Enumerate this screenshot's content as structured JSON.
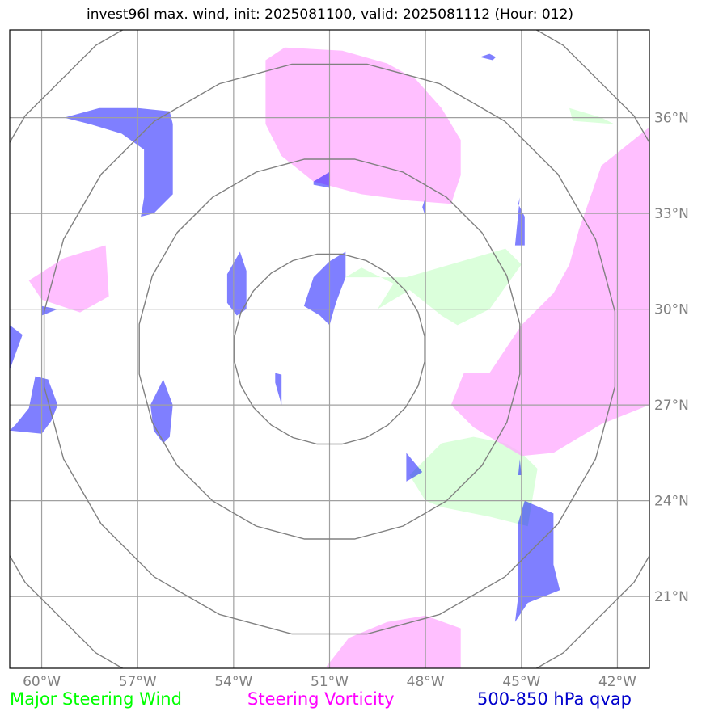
{
  "title": "invest96l max. wind, init: 2025081100, valid: 2025081112 (Hour: 012)",
  "legend": [
    {
      "label": "Major Steering Wind",
      "color": "#00ff00"
    },
    {
      "label": "Steering Vorticity",
      "color": "#ff00ff"
    },
    {
      "label": "500-850 hPa qvap",
      "color": "#0000cc"
    }
  ],
  "map": {
    "lon_range": [
      -61,
      -41
    ],
    "lat_range": [
      18.75,
      38.75
    ],
    "lon_ticks": [
      {
        "value": -60,
        "label": "60°W"
      },
      {
        "value": -57,
        "label": "57°W"
      },
      {
        "value": -54,
        "label": "54°W"
      },
      {
        "value": -51,
        "label": "51°W"
      },
      {
        "value": -48,
        "label": "48°W"
      },
      {
        "value": -45,
        "label": "45°W"
      },
      {
        "value": -42,
        "label": "42°W"
      }
    ],
    "lat_ticks": [
      {
        "value": 36,
        "label": "36°N"
      },
      {
        "value": 33,
        "label": "33°N"
      },
      {
        "value": 30,
        "label": "30°N"
      },
      {
        "value": 27,
        "label": "27°N"
      },
      {
        "value": 24,
        "label": "24°N"
      },
      {
        "value": 21,
        "label": "21°N"
      }
    ],
    "center": {
      "lon": -51,
      "lat": 28.75
    },
    "range_rings_deg": [
      3,
      6,
      9,
      12
    ],
    "colors": {
      "wind": "#ccffcc",
      "vorticity": "#ffaaff",
      "qvap": "#0000ff",
      "grid": "#a0a0a0",
      "rings": "#808080"
    },
    "wind_areas": [
      [
        [
          -50.5,
          31.0
        ],
        [
          -48.6,
          31.0
        ],
        [
          -45.5,
          31.9
        ],
        [
          -45.0,
          31.4
        ],
        [
          -46.0,
          30.0
        ],
        [
          -47.0,
          29.5
        ],
        [
          -47.5,
          29.8
        ],
        [
          -48.5,
          30.6
        ],
        [
          -49.5,
          30.0
        ],
        [
          -49.0,
          30.8
        ],
        [
          -50.0,
          31.3
        ]
      ],
      [
        [
          -48.5,
          24.8
        ],
        [
          -47.5,
          25.8
        ],
        [
          -46.5,
          26.0
        ],
        [
          -45.5,
          25.8
        ],
        [
          -45.0,
          25.5
        ],
        [
          -44.5,
          25.0
        ],
        [
          -44.8,
          23.2
        ],
        [
          -46.0,
          23.5
        ],
        [
          -47.5,
          23.8
        ],
        [
          -48.0,
          24.0
        ]
      ],
      [
        [
          -43.5,
          36.3
        ],
        [
          -42.5,
          36.0
        ],
        [
          -42.1,
          35.8
        ],
        [
          -43.4,
          35.9
        ]
      ]
    ],
    "vorticity_areas": [
      [
        [
          -53.0,
          37.8
        ],
        [
          -52.4,
          38.2
        ],
        [
          -50.6,
          38.1
        ],
        [
          -49.2,
          37.7
        ],
        [
          -48.3,
          37.2
        ],
        [
          -47.5,
          36.3
        ],
        [
          -46.9,
          35.3
        ],
        [
          -46.9,
          34.2
        ],
        [
          -47.2,
          33.3
        ],
        [
          -48.5,
          33.4
        ],
        [
          -50.0,
          33.6
        ],
        [
          -51.5,
          34.0
        ],
        [
          -52.5,
          34.8
        ],
        [
          -53.0,
          35.8
        ]
      ],
      [
        [
          -60.4,
          30.9
        ],
        [
          -59.3,
          31.6
        ],
        [
          -58.0,
          32.0
        ],
        [
          -57.9,
          30.4
        ],
        [
          -58.8,
          29.9
        ],
        [
          -60.0,
          30.3
        ]
      ],
      [
        [
          -46.0,
          28.0
        ],
        [
          -45.0,
          29.5
        ],
        [
          -44.0,
          30.5
        ],
        [
          -43.5,
          31.4
        ],
        [
          -43.2,
          32.5
        ],
        [
          -42.5,
          34.5
        ],
        [
          -41.0,
          35.7
        ],
        [
          -41.0,
          27.0
        ],
        [
          -42.5,
          26.4
        ],
        [
          -44.0,
          25.5
        ],
        [
          -45.0,
          25.4
        ],
        [
          -46.5,
          26.3
        ],
        [
          -47.2,
          27.0
        ],
        [
          -46.8,
          28.0
        ]
      ],
      [
        [
          -51.1,
          18.8
        ],
        [
          -50.4,
          19.7
        ],
        [
          -49.2,
          20.2
        ],
        [
          -48.0,
          20.4
        ],
        [
          -46.9,
          20.0
        ],
        [
          -46.9,
          18.75
        ],
        [
          -51.0,
          18.75
        ]
      ]
    ],
    "qvap_areas": [
      [
        [
          -59.3,
          36.0
        ],
        [
          -58.2,
          36.3
        ],
        [
          -57.0,
          36.3
        ],
        [
          -56.0,
          36.2
        ],
        [
          -55.9,
          35.8
        ],
        [
          -55.9,
          33.6
        ],
        [
          -56.5,
          33.0
        ],
        [
          -56.9,
          32.9
        ],
        [
          -56.8,
          33.5
        ],
        [
          -56.8,
          35.0
        ],
        [
          -57.5,
          35.5
        ],
        [
          -58.5,
          35.8
        ]
      ],
      [
        [
          -51.0,
          31.5
        ],
        [
          -51.5,
          31.0
        ],
        [
          -51.8,
          30.1
        ],
        [
          -51.3,
          29.8
        ],
        [
          -51.0,
          29.5
        ],
        [
          -50.8,
          30.2
        ],
        [
          -50.5,
          31.0
        ],
        [
          -50.5,
          31.8
        ]
      ],
      [
        [
          -53.8,
          31.8
        ],
        [
          -53.6,
          31.2
        ],
        [
          -53.6,
          30.0
        ],
        [
          -53.9,
          29.8
        ],
        [
          -54.2,
          30.2
        ],
        [
          -54.2,
          31.1
        ]
      ],
      [
        [
          -56.2,
          27.8
        ],
        [
          -55.9,
          27.0
        ],
        [
          -56.0,
          26.0
        ],
        [
          -56.2,
          25.8
        ],
        [
          -56.5,
          26.2
        ],
        [
          -56.6,
          27.0
        ]
      ],
      [
        [
          -60.2,
          27.9
        ],
        [
          -59.8,
          27.8
        ],
        [
          -59.5,
          27.0
        ],
        [
          -59.7,
          26.5
        ],
        [
          -60.0,
          26.1
        ],
        [
          -61.0,
          26.2
        ],
        [
          -60.8,
          26.4
        ],
        [
          -60.4,
          26.9
        ]
      ],
      [
        [
          -61.0,
          29.5
        ],
        [
          -60.6,
          29.2
        ],
        [
          -61.0,
          28.1
        ]
      ],
      [
        [
          -44.9,
          24.0
        ],
        [
          -44.0,
          23.6
        ],
        [
          -44.0,
          22.0
        ],
        [
          -43.8,
          21.2
        ],
        [
          -44.8,
          20.8
        ],
        [
          -45.2,
          20.2
        ],
        [
          -45.1,
          21.0
        ],
        [
          -45.1,
          23.3
        ]
      ],
      [
        [
          -45.1,
          33.3
        ],
        [
          -44.9,
          32.9
        ],
        [
          -44.9,
          32.0
        ],
        [
          -45.2,
          32.0
        ],
        [
          -45.1,
          33.0
        ],
        [
          -45.05,
          33.5
        ]
      ],
      [
        [
          -48.6,
          25.5
        ],
        [
          -48.1,
          24.9
        ],
        [
          -48.6,
          24.6
        ]
      ],
      [
        [
          -46.3,
          37.9
        ],
        [
          -45.9,
          37.8
        ],
        [
          -45.8,
          37.9
        ],
        [
          -46.0,
          38.0
        ]
      ],
      [
        [
          -52.7,
          28.0
        ],
        [
          -52.5,
          27.95
        ],
        [
          -52.5,
          27.0
        ],
        [
          -52.7,
          27.7
        ]
      ],
      [
        [
          -51.5,
          34.0
        ],
        [
          -51.0,
          34.3
        ],
        [
          -51.0,
          33.8
        ],
        [
          -51.5,
          33.9
        ]
      ],
      [
        [
          -60.0,
          30.1
        ],
        [
          -59.5,
          30.0
        ],
        [
          -60.0,
          29.8
        ]
      ],
      [
        [
          -48.1,
          33.2
        ],
        [
          -48.0,
          33.5
        ],
        [
          -48.0,
          32.9
        ]
      ],
      [
        [
          -45.1,
          24.8
        ],
        [
          -45.05,
          25.3
        ],
        [
          -45.0,
          24.8
        ]
      ]
    ]
  }
}
